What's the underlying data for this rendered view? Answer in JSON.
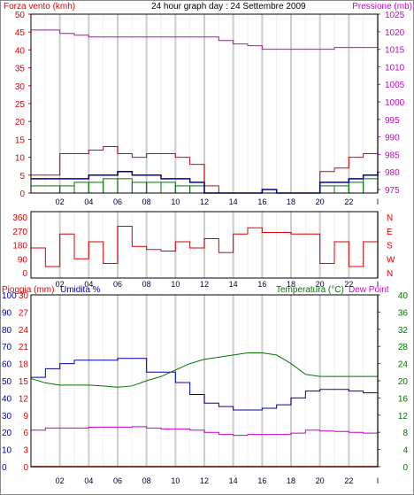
{
  "header": {
    "title": "24 hour graph day : 24 Settembre 2009",
    "left_label": "Forza vento (kmh)",
    "right_label": "Pressione (mb)"
  },
  "colors": {
    "wind": "#dd0000",
    "gust": "#0000aa",
    "wind_green": "#007700",
    "pressure": "#cc00cc",
    "direction": "#dd0000",
    "temperature": "#007700",
    "humidity": "#0000aa",
    "dewpoint": "#cc00cc",
    "rain": "#dd0000",
    "grid_major": "#cccccc"
  },
  "x_ticks": [
    "02",
    "04",
    "06",
    "08",
    "10",
    "12",
    "14",
    "16",
    "18",
    "20",
    "22",
    "I"
  ],
  "chart_data": [
    {
      "type": "line",
      "panel": "wind_pressure",
      "title": "24 hour graph day : 24 Settembre 2009",
      "ylabel_left": "Forza vento (kmh)",
      "ylabel_right": "Pressione (mb)",
      "y_left_ticks": [
        0,
        5,
        10,
        15,
        20,
        25,
        30,
        35,
        40,
        45,
        50
      ],
      "y_right_ticks": [
        975,
        980,
        985,
        990,
        995,
        1000,
        1005,
        1010,
        1015,
        1020,
        1025
      ],
      "ylim_left": [
        0,
        50
      ],
      "ylim_right": [
        974,
        1025
      ],
      "x": [
        0,
        2,
        3,
        4,
        5,
        6,
        7,
        8,
        9,
        10,
        11,
        12,
        13,
        14,
        15,
        16,
        17,
        18,
        19,
        20,
        21,
        22,
        23,
        24
      ],
      "series": [
        {
          "key": "wind",
          "values": [
            5,
            11,
            11,
            12,
            13,
            11,
            10,
            11,
            11,
            10,
            8,
            2,
            0,
            0,
            0,
            0,
            0,
            0,
            0,
            6,
            7,
            10,
            11,
            11
          ]
        },
        {
          "key": "gust",
          "values": [
            4,
            4,
            4,
            5,
            5,
            6,
            5,
            5,
            4,
            4,
            3,
            0,
            0,
            0,
            0,
            1,
            0,
            0,
            0,
            3,
            3,
            4,
            5,
            6
          ]
        },
        {
          "key": "wind_green",
          "values": [
            2,
            2,
            3,
            3,
            4,
            4,
            3,
            3,
            3,
            2,
            2,
            0,
            0,
            0,
            0,
            0,
            0,
            0,
            0,
            2,
            2,
            3,
            4,
            5
          ]
        },
        {
          "key": "pressure",
          "values": [
            1020.5,
            1019.5,
            1019,
            1018.5,
            1018.5,
            1018.5,
            1018.5,
            1018.5,
            1018.5,
            1018.5,
            1018.5,
            1018.5,
            1017.5,
            1016.5,
            1016,
            1015,
            1015,
            1015,
            1015,
            1015,
            1015.5,
            1015.5,
            1015.5,
            1015.5
          ]
        }
      ]
    },
    {
      "type": "line",
      "panel": "wind_direction",
      "y_left_ticks": [
        0,
        90,
        180,
        270,
        360
      ],
      "y_right_labels": [
        "N",
        "W",
        "S",
        "E",
        "N"
      ],
      "ylim": [
        0,
        360
      ],
      "x": [
        0,
        1,
        2,
        3,
        4,
        5,
        6,
        7,
        8,
        9,
        10,
        11,
        12,
        13,
        14,
        15,
        16,
        17,
        18,
        19,
        20,
        21,
        22,
        23,
        24
      ],
      "series": [
        {
          "key": "direction",
          "values": [
            160,
            40,
            250,
            90,
            200,
            60,
            300,
            170,
            150,
            140,
            200,
            160,
            220,
            130,
            250,
            290,
            260,
            260,
            250,
            250,
            60,
            200,
            40,
            200,
            60
          ]
        }
      ]
    },
    {
      "type": "line",
      "panel": "temp_humidity",
      "ylabel_left": "Pioggia (mm)",
      "ylabel_humidity": "Umidita %",
      "ylabel_right": "Temperatura (°C)",
      "ylabel_dew": "Dew Point",
      "y_humidity_ticks": [
        0,
        10,
        20,
        30,
        40,
        50,
        60,
        70,
        80,
        90,
        100
      ],
      "y_rain_ticks": [
        0,
        3,
        6,
        9,
        12,
        15,
        18,
        21,
        24,
        27,
        30
      ],
      "y_temp_ticks": [
        0,
        4,
        8,
        12,
        16,
        20,
        24,
        28,
        32,
        36,
        40
      ],
      "ylim_humidity": [
        0,
        100
      ],
      "ylim_temp": [
        0,
        40
      ],
      "x": [
        0,
        1,
        2,
        3,
        4,
        5,
        6,
        7,
        8,
        9,
        10,
        11,
        12,
        13,
        14,
        15,
        16,
        17,
        18,
        19,
        20,
        21,
        22,
        23,
        24
      ],
      "series": [
        {
          "key": "humidity",
          "values": [
            52,
            57,
            60,
            62,
            62,
            62,
            63,
            63,
            55,
            55,
            49,
            42,
            37,
            35,
            33,
            33,
            34,
            36,
            40,
            44,
            45,
            45,
            44,
            43,
            43
          ]
        },
        {
          "key": "temperature",
          "values": [
            20.5,
            19.5,
            19,
            19,
            19,
            18.8,
            18.5,
            18.8,
            20,
            21,
            22.5,
            24,
            25,
            25.5,
            26,
            26.5,
            26.5,
            26,
            24,
            21.5,
            21,
            21,
            21,
            21,
            21
          ]
        },
        {
          "key": "dewpoint",
          "values": [
            8.5,
            9,
            9,
            9,
            9.2,
            9.2,
            9.2,
            9.3,
            9,
            8.8,
            8.8,
            8.5,
            8,
            7.5,
            7.3,
            7.5,
            7.5,
            7.5,
            7.8,
            8.5,
            8.3,
            8.2,
            8,
            7.8,
            7.5
          ]
        },
        {
          "key": "rain",
          "values": [
            0,
            0,
            0,
            0,
            0,
            0,
            0,
            0,
            0,
            0,
            0,
            0,
            0,
            0,
            0,
            0,
            0,
            0,
            0,
            0,
            0,
            0,
            0,
            0,
            0
          ]
        }
      ]
    }
  ]
}
